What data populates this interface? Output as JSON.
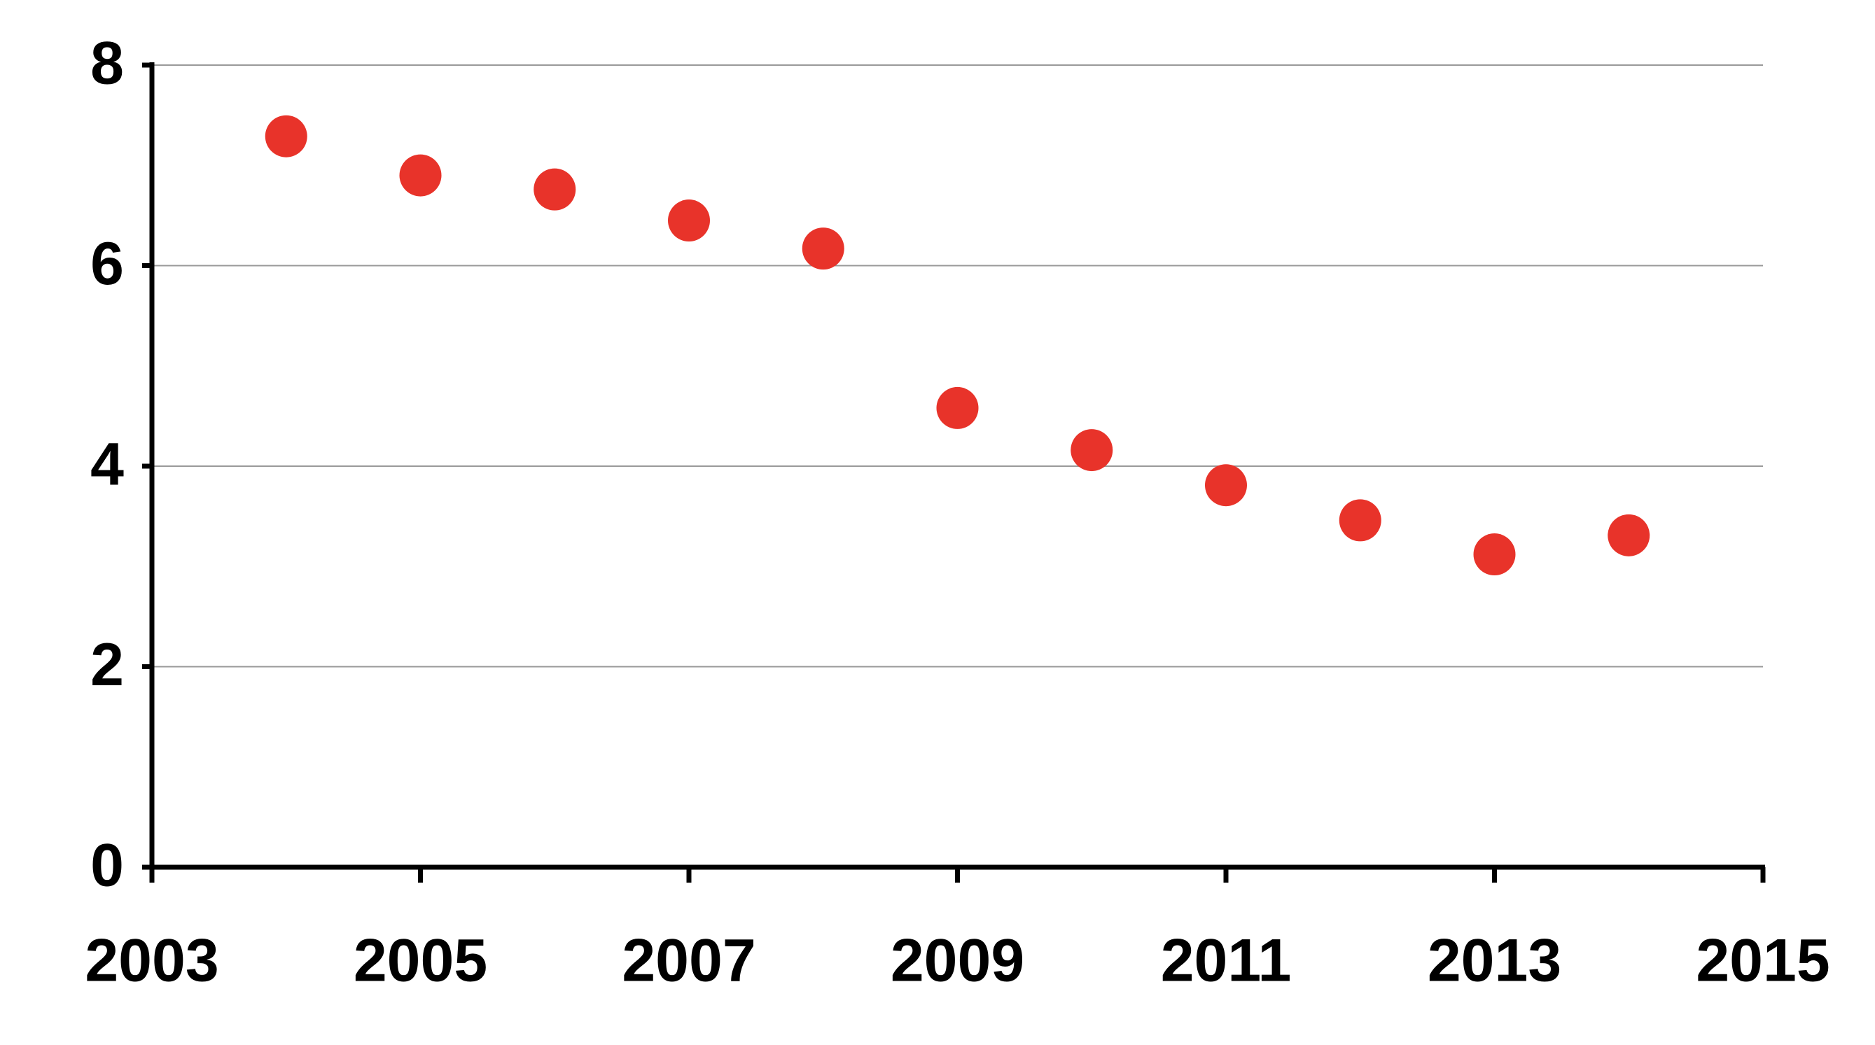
{
  "chart_data": {
    "type": "scatter",
    "x": [
      2004,
      2005,
      2006,
      2007,
      2008,
      2009,
      2010,
      2011,
      2012,
      2013,
      2014
    ],
    "values": [
      7.29,
      6.9,
      6.76,
      6.45,
      6.17,
      4.58,
      4.16,
      3.81,
      3.46,
      3.12,
      3.31
    ],
    "color": "#e8332a",
    "xlim": [
      2003,
      2015
    ],
    "xticks": [
      2003,
      2005,
      2007,
      2009,
      2011,
      2013,
      2015
    ],
    "ylim": [
      0,
      8
    ],
    "yticks": [
      0,
      2,
      4,
      6,
      8
    ],
    "grid": true
  }
}
